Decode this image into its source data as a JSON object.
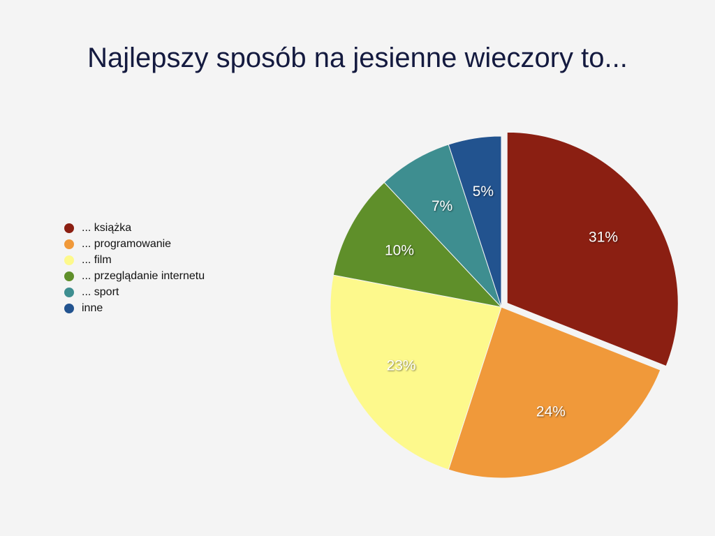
{
  "chart_data": {
    "type": "pie",
    "title": "Najlepszy sposób na jesienne wieczory to...",
    "categories": [
      "... książka",
      "... programowanie",
      "... film",
      "... przeglądanie internetu",
      "... sport",
      "inne"
    ],
    "values": [
      31,
      24,
      23,
      10,
      7,
      5
    ],
    "value_labels": [
      "31%",
      "24%",
      "23%",
      "10%",
      "7%",
      "5%"
    ],
    "colors": [
      "#8b1f12",
      "#f0993a",
      "#fdf98c",
      "#5f8f2a",
      "#3e8e90",
      "#22538f"
    ],
    "explode": [
      0
    ],
    "legend": "left"
  }
}
